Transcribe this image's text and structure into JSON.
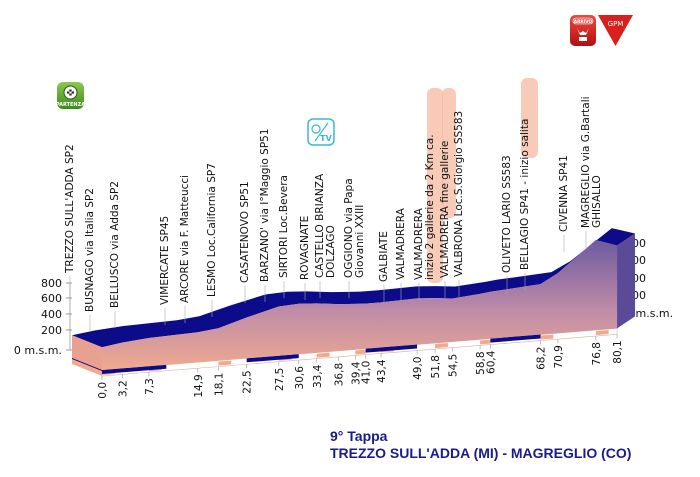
{
  "chart_data": {
    "type": "area",
    "title": "9° Tappa",
    "subtitle": "TREZZO SULL'ADDA (MI) - MAGREGLIO (CO)",
    "xlabel": "km",
    "ylabel": "m.s.m.",
    "ylim": [
      0,
      800
    ],
    "y_ticks": [
      "800",
      "600",
      "400",
      "200",
      "0 m.s.m."
    ],
    "km_ticks": [
      "0,0",
      "3,2",
      "7,3",
      "14,9",
      "18,1",
      "22,5",
      "27,5",
      "30,6",
      "33,4",
      "36,8",
      "39,4",
      "41,0",
      "43,4",
      "49,0",
      "51,8",
      "54,5",
      "58,8",
      "60,4",
      "68,2",
      "70,9",
      "76,8",
      "80,1"
    ],
    "km": [
      0,
      3.2,
      7.3,
      14.9,
      18.1,
      22.5,
      27.5,
      30.6,
      33.4,
      36.8,
      39.4,
      41.0,
      43.4,
      49.0,
      51.8,
      54.5,
      58.8,
      60.4,
      68.2,
      70.9,
      76.8,
      80.1
    ],
    "elevation_m": [
      190,
      215,
      235,
      250,
      270,
      340,
      410,
      420,
      410,
      390,
      380,
      375,
      375,
      385,
      375,
      360,
      380,
      390,
      420,
      500,
      750,
      690
    ],
    "road_blue_segments_km": [
      [
        0,
        10
      ],
      [
        22.5,
        30.6
      ],
      [
        41,
        49
      ],
      [
        60.4,
        68.2
      ]
    ],
    "places": [
      {
        "lines": [
          "TREZZO SULL'ADDA SP2"
        ]
      },
      {
        "lines": [
          "BUSNAGO via Italia SP2"
        ]
      },
      {
        "lines": [
          "BELLUSCO via Adda SP2"
        ]
      },
      {
        "lines": [
          "VIMERCATE SP45"
        ]
      },
      {
        "lines": [
          "ARCORE via F. Matteucci"
        ]
      },
      {
        "lines": [
          "LESMO Loc.California SP7"
        ]
      },
      {
        "lines": [
          "CASATENOVO SP51"
        ]
      },
      {
        "lines": [
          "BARZANO' via I°Maggio SP51"
        ]
      },
      {
        "lines": [
          "SIRTORI Loc.Bevera"
        ]
      },
      {
        "lines": [
          "ROVAGNATE"
        ]
      },
      {
        "lines": [
          "CASTELLO BRIANZA",
          "DOLZAGO"
        ]
      },
      {
        "lines": [
          "OGGIONO via Papa",
          "Giovanni XXIII"
        ]
      },
      {
        "lines": [
          "GALBIATE"
        ]
      },
      {
        "lines": [
          "VALMADRERA"
        ]
      },
      {
        "lines": [
          "VALMADRERA",
          "inizio 2 gallerie da 2 Km ca."
        ]
      },
      {
        "lines": [
          "VALMADRERA  fine gallerie"
        ]
      },
      {
        "lines": [
          "VALBRONA Loc.S.Giorgio SS583"
        ]
      },
      {
        "lines": [
          "OLIVETO LARIO SS583"
        ]
      },
      {
        "lines": [
          "BELLAGIO SP41  - inizio salita"
        ]
      },
      {
        "lines": [
          "CIVENNA SP41"
        ]
      },
      {
        "lines": [
          "MAGREGLIO via G.Bartali",
          "GHISALLO"
        ]
      }
    ],
    "icons": {
      "start": "PARTENZA",
      "finish": "ARRIVO",
      "gpm": "GPM",
      "tv": "TV"
    }
  },
  "colors": {
    "ribbon": "#0c0c8a",
    "face_top": "#6e5aa0",
    "face_bottom": "#f0aa90",
    "title": "#1a1a8c",
    "highlight": "#f5b8a0",
    "start": "#5aa02a",
    "finish": "#d8201c"
  }
}
